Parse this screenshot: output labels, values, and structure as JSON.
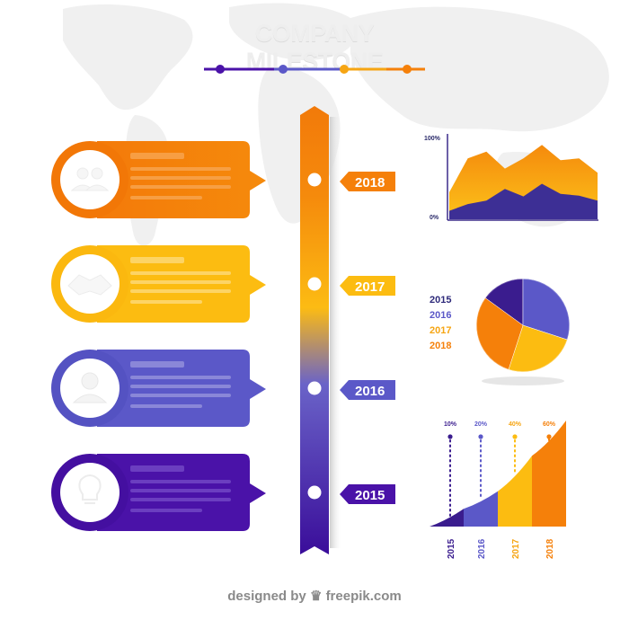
{
  "title": "COMPANY MILESTONE",
  "timeline_years": [
    "2018",
    "2017",
    "2016",
    "2015"
  ],
  "colors": {
    "orange": "#f5800a",
    "yellow": "#fcbc11",
    "blue": "#5b58c8",
    "purple": "#4a12a8",
    "dark_navy": "#2e2a7a"
  },
  "cards": [
    {
      "color": "orange",
      "icon": "people-icon"
    },
    {
      "color": "yellow",
      "icon": "handshake-icon"
    },
    {
      "color": "blue",
      "icon": "user-icon"
    },
    {
      "color": "purple",
      "icon": "lightbulb-icon"
    }
  ],
  "area_chart": {
    "y_max_label": "100%",
    "y_min_label": "0%"
  },
  "chart_data": [
    {
      "type": "area",
      "x": [
        0,
        1,
        2,
        3,
        4,
        5,
        6,
        7,
        8
      ],
      "series": [
        {
          "values": [
            32,
            72,
            80,
            60,
            72,
            88,
            70,
            72,
            55
          ]
        },
        {
          "values": [
            10,
            18,
            22,
            36,
            27,
            42,
            30,
            28,
            22
          ]
        }
      ],
      "ylim": [
        0,
        100
      ]
    },
    {
      "type": "pie",
      "categories": [
        "2015",
        "2016",
        "2017",
        "2018"
      ],
      "values": [
        15,
        30,
        25,
        30
      ]
    },
    {
      "type": "area",
      "categories": [
        "2015",
        "2016",
        "2017",
        "2018"
      ],
      "values": [
        10,
        20,
        40,
        60
      ],
      "tick_labels": [
        "10%",
        "20%",
        "40%",
        "60%"
      ]
    }
  ],
  "pie_legend": [
    "2015",
    "2016",
    "2017",
    "2018"
  ],
  "footer": {
    "prefix": "designed by",
    "brand": "freepik.com"
  }
}
